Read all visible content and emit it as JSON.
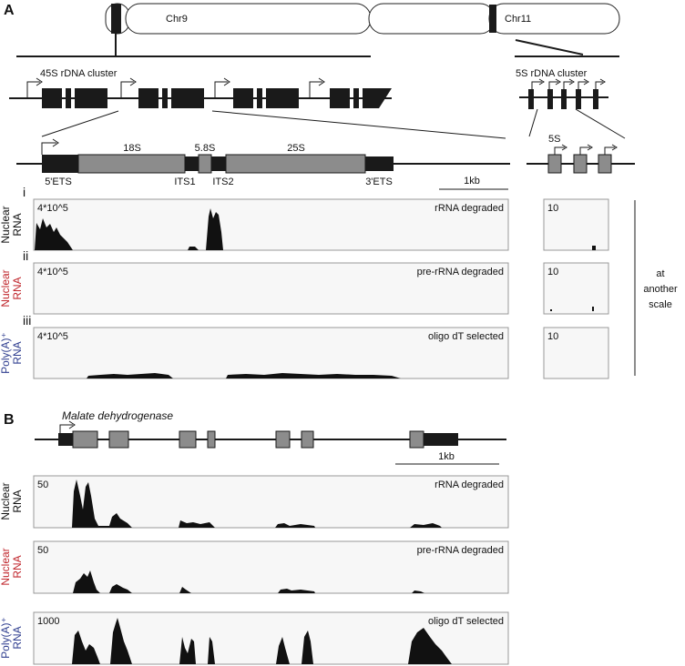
{
  "panel_a": {
    "label": "A",
    "chromosomes": [
      "Chr9",
      "Chr11"
    ],
    "clusters": [
      "45S rDNA cluster",
      "5S rDNA cluster"
    ],
    "genes": [
      "18S",
      "5.8S",
      "25S"
    ],
    "spacers": [
      "5'ETS",
      "ITS1",
      "ITS2",
      "3'ETS"
    ],
    "scale_bar": "1kb",
    "five_s": "5S",
    "tracks": [
      {
        "roman": "i",
        "sample": [
          "Nuclear",
          "RNA"
        ],
        "scale": "4*10^5",
        "condition": "rRNA degraded",
        "scale_5s": "10"
      },
      {
        "roman": "ii",
        "sample": [
          "Nuclear",
          "RNA"
        ],
        "scale": "4*10^5",
        "condition": "pre-rRNA degraded",
        "scale_5s": "10"
      },
      {
        "roman": "iii",
        "sample": [
          "Poly(A)⁺",
          "RNA"
        ],
        "scale": "4*10^5",
        "condition": "oligo dT selected",
        "scale_5s": "10"
      }
    ],
    "side_note": [
      "at",
      "another",
      "scale"
    ]
  },
  "panel_b": {
    "label": "B",
    "gene": "Malate dehydrogenase",
    "scale_bar": "1kb",
    "tracks": [
      {
        "sample": [
          "Nuclear",
          "RNA"
        ],
        "scale": "50",
        "condition": "rRNA degraded"
      },
      {
        "sample": [
          "Nuclear",
          "RNA"
        ],
        "scale": "50",
        "condition": "pre-rRNA degraded"
      },
      {
        "sample": [
          "Poly(A)⁺",
          "RNA"
        ],
        "scale": "1000",
        "condition": "oligo dT selected"
      }
    ]
  }
}
